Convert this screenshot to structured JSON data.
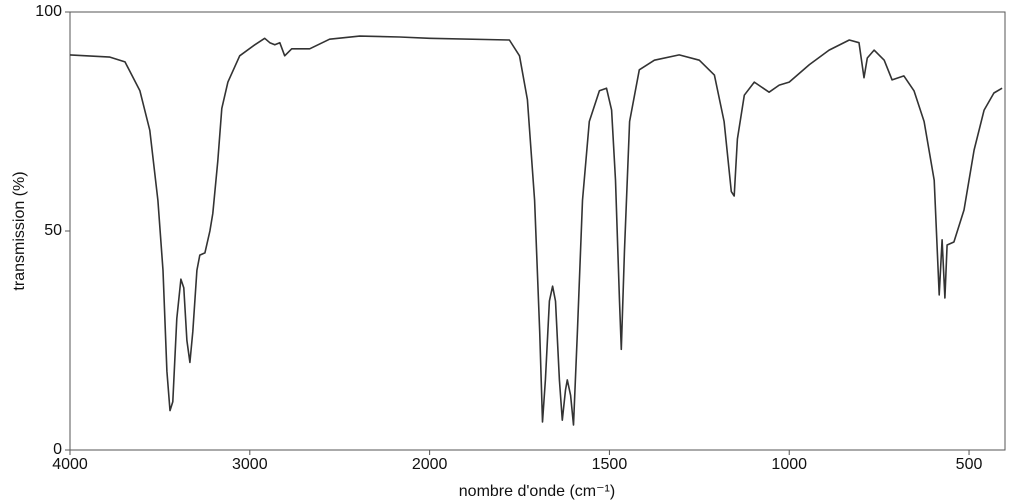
{
  "chart_data": {
    "type": "line",
    "x_label": "nombre d'onde (cm⁻¹)",
    "y_label": "transmission (%)",
    "xlim": [
      4000,
      400
    ],
    "xticks": [
      4000,
      3000,
      2000,
      1500,
      1000,
      500
    ],
    "x_scale_break": 2000,
    "x_scale_factor_below_break": 2,
    "ylim": [
      0,
      100
    ],
    "yticks": [
      0,
      50,
      100
    ],
    "grid": false,
    "x": [
      4000,
      3778,
      3694,
      3611,
      3556,
      3511,
      3483,
      3461,
      3444,
      3428,
      3406,
      3383,
      3367,
      3350,
      3333,
      3317,
      3294,
      3278,
      3250,
      3222,
      3206,
      3178,
      3156,
      3122,
      3056,
      2972,
      2917,
      2889,
      2861,
      2833,
      2806,
      2767,
      2667,
      2556,
      2389,
      2167,
      2000,
      1778,
      1750,
      1728,
      1708,
      1694,
      1686,
      1678,
      1667,
      1658,
      1650,
      1639,
      1631,
      1622,
      1617,
      1608,
      1600,
      1589,
      1575,
      1556,
      1528,
      1508,
      1494,
      1483,
      1472,
      1467,
      1458,
      1444,
      1417,
      1375,
      1306,
      1250,
      1208,
      1181,
      1161,
      1153,
      1144,
      1125,
      1097,
      1056,
      1028,
      1000,
      944,
      889,
      833,
      806,
      792,
      783,
      764,
      736,
      714,
      681,
      653,
      625,
      597,
      583,
      575,
      567,
      561,
      542,
      514,
      486,
      458,
      431,
      408
    ],
    "series": [
      {
        "color": "#333333",
        "values": [
          90.2,
          89.7,
          88.6,
          82,
          73,
          57,
          41,
          18,
          9,
          11,
          30,
          39,
          37,
          25,
          20,
          27,
          41,
          44.5,
          45,
          50,
          54,
          66,
          78,
          84,
          90,
          92.5,
          94,
          93,
          92.5,
          93,
          90,
          91.6,
          91.6,
          93.8,
          94.5,
          94.3,
          94,
          93.6,
          90,
          80,
          57,
          27,
          6.4,
          16,
          34,
          37.4,
          34,
          16,
          6.8,
          13.7,
          16,
          12.5,
          5.7,
          27,
          57,
          75,
          82,
          82.6,
          77.6,
          61.6,
          34,
          23,
          45.7,
          75,
          86.8,
          89,
          90.2,
          89,
          85.6,
          75,
          59,
          58,
          71,
          81,
          84,
          81.7,
          83.3,
          84,
          88,
          91.3,
          93.6,
          93,
          85,
          89.5,
          91.3,
          89,
          84.5,
          85.4,
          82,
          75,
          61.6,
          35.4,
          48,
          34.7,
          46.8,
          47.5,
          54.8,
          68.5,
          77.6,
          81.5,
          82.6
        ]
      }
    ]
  }
}
